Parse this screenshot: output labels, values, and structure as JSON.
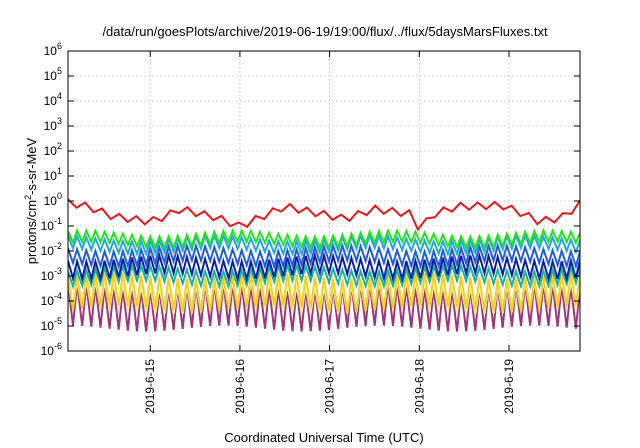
{
  "chart_data": {
    "type": "line",
    "title": "/data/run/goesPlots/archive/2019-06-19/19:00/flux/../flux/5daysMarsFluxes.txt",
    "xlabel": "Coordinated Universal Time (UTC)",
    "ylabel": "protons/cm2-s-sr-MeV",
    "ylabel_parts": {
      "before": "protons/cm",
      "sup": "2",
      "after": "-s-sr-MeV"
    },
    "y_scale": "log",
    "ylim_exponents": [
      -6,
      6
    ],
    "y_ticks": [
      {
        "base": "10",
        "exp": "-6"
      },
      {
        "base": "10",
        "exp": "-5"
      },
      {
        "base": "10",
        "exp": "-4"
      },
      {
        "base": "10",
        "exp": "-3"
      },
      {
        "base": "10",
        "exp": "-2"
      },
      {
        "base": "10",
        "exp": "-1"
      },
      {
        "base": "10",
        "exp": "0"
      },
      {
        "base": "10",
        "exp": "1"
      },
      {
        "base": "10",
        "exp": "2"
      },
      {
        "base": "10",
        "exp": "3"
      },
      {
        "base": "10",
        "exp": "4"
      },
      {
        "base": "10",
        "exp": "5"
      },
      {
        "base": "10",
        "exp": "6"
      }
    ],
    "xlim": [
      "2019-06-14 02:00",
      "2019-06-19 19:00"
    ],
    "x_ticks": [
      "2019-6-15",
      "2019-6-16",
      "2019-6-17",
      "2019-6-18",
      "2019-6-19"
    ],
    "grid": true,
    "series": [
      {
        "color": "#e8161b",
        "profile": "sawtooth",
        "log10_values": [
          [
            -0.05,
            "2019-06-14 02:00"
          ],
          [
            -0.15,
            "2019-06-14 06:00"
          ],
          [
            -0.35,
            "2019-06-14 10:00"
          ],
          [
            -0.6,
            "2019-06-14 14:00"
          ],
          [
            -0.8,
            "2019-06-15 00:00"
          ],
          [
            -0.6,
            "2019-06-15 04:00"
          ],
          [
            -0.3,
            "2019-06-15 08:00"
          ],
          [
            -0.65,
            "2019-06-15 18:00"
          ],
          [
            -1.0,
            "2019-06-16 00:00"
          ],
          [
            -0.6,
            "2019-06-16 06:00"
          ],
          [
            -0.2,
            "2019-06-16 12:00"
          ],
          [
            -0.5,
            "2019-06-16 22:00"
          ],
          [
            -0.7,
            "2019-06-17 04:00"
          ],
          [
            -0.3,
            "2019-06-17 12:00"
          ],
          [
            -0.5,
            "2019-06-17 22:00"
          ],
          [
            -1.1,
            "2019-06-18 00:00"
          ],
          [
            -0.5,
            "2019-06-18 04:00"
          ],
          [
            -0.2,
            "2019-06-18 10:00"
          ],
          [
            -0.15,
            "2019-06-18 22:00"
          ],
          [
            -0.5,
            "2019-06-19 04:00"
          ],
          [
            -0.8,
            "2019-06-19 08:00"
          ],
          [
            -0.65,
            "2019-06-19 14:00"
          ],
          [
            -0.1,
            "2019-06-19 19:00"
          ]
        ]
      },
      {
        "color": "#22e31c",
        "band": [
          -1.75,
          -1.3
        ]
      },
      {
        "color": "#1fa9e0",
        "band": [
          -2.0,
          -1.5
        ]
      },
      {
        "color": "#1f5de0",
        "band": [
          -2.5,
          -1.9
        ]
      },
      {
        "color": "#0b1fa6",
        "band": [
          -3.0,
          -2.3
        ]
      },
      {
        "color": "#17b3a0",
        "band": [
          -3.3,
          -2.7
        ]
      },
      {
        "color": "#f2d020",
        "band": [
          -4.3,
          -3.0
        ]
      },
      {
        "color": "#fbf59a",
        "band": [
          -4.4,
          -3.3
        ]
      },
      {
        "color": "#a0357a",
        "band": [
          -5.1,
          -3.4
        ]
      }
    ]
  }
}
